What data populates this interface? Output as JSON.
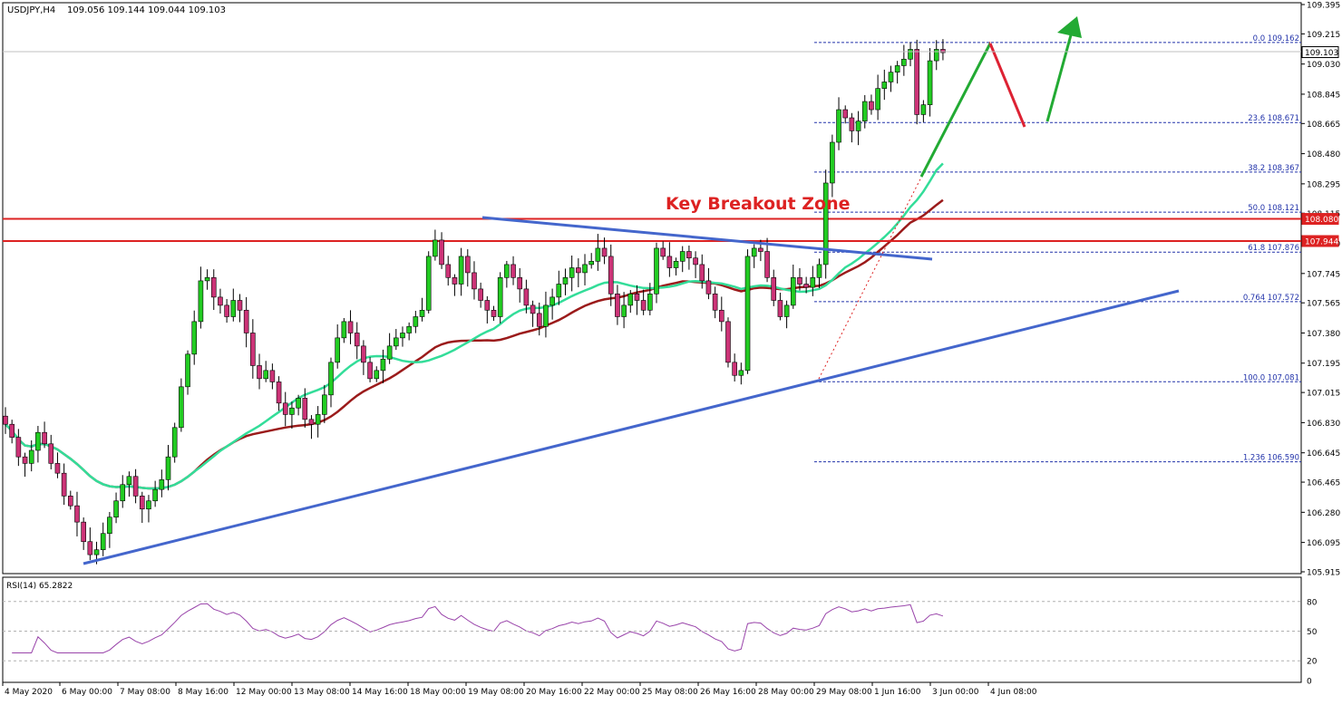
{
  "header": {
    "symbol": "USDJPY,H4",
    "ohlc": "109.056 109.144 109.044 109.103"
  },
  "annotation": "Key Breakout Zone",
  "rsi_label": "RSI(14) 65.2822",
  "colors": {
    "bull_candle": "#22cc22",
    "bear_candle": "#cc3377",
    "sma_slow": "#9b1b1b",
    "sma_fast": "#33dd99",
    "trendline": "#4466cc",
    "zone_line": "#dd2222",
    "fib": "#2233aa",
    "rsi_line": "#9944aa",
    "arrow_up": "#22aa33",
    "arrow_down": "#dd2233"
  },
  "chart_data": {
    "type": "candlestick",
    "y_axis_ticks": [
      "109.395",
      "109.215",
      "109.030",
      "108.845",
      "108.665",
      "108.480",
      "108.295",
      "108.115",
      "107.930",
      "107.745",
      "107.565",
      "107.380",
      "107.195",
      "107.015",
      "106.830",
      "106.645",
      "106.465",
      "106.280",
      "106.095",
      "105.915"
    ],
    "ylim": [
      105.915,
      109.395
    ],
    "x_axis_ticks": [
      "4 May 2020",
      "6 May 00:00",
      "7 May 08:00",
      "8 May 16:00",
      "12 May 00:00",
      "13 May 08:00",
      "14 May 16:00",
      "18 May 00:00",
      "19 May 08:00",
      "20 May 16:00",
      "22 May 00:00",
      "25 May 08:00",
      "26 May 16:00",
      "28 May 00:00",
      "29 May 08:00",
      "1 Jun 16:00",
      "3 Jun 00:00",
      "4 Jun 08:00"
    ],
    "price_markers": [
      {
        "label": "109.103",
        "value": 109.103,
        "style": "current"
      },
      {
        "label": "108.080",
        "value": 108.08,
        "style": "zone"
      },
      {
        "label": "107.944",
        "value": 107.944,
        "style": "zone"
      }
    ],
    "fib_levels": [
      {
        "label": "0.0 109.162",
        "value": 109.162
      },
      {
        "label": "23.6 108.671",
        "value": 108.671
      },
      {
        "label": "38.2 108.367",
        "value": 108.367
      },
      {
        "label": "50.0 108.121",
        "value": 108.121
      },
      {
        "label": "61.8 107.876",
        "value": 107.876
      },
      {
        "label": "0.764 107.572",
        "value": 107.572
      },
      {
        "label": "100.0 107.081",
        "value": 107.081
      },
      {
        "label": "1.236 106.590",
        "value": 106.59
      }
    ],
    "closes": [
      106.82,
      106.74,
      106.62,
      106.58,
      106.66,
      106.77,
      106.7,
      106.58,
      106.52,
      106.38,
      106.32,
      106.22,
      106.1,
      106.02,
      106.05,
      106.15,
      106.25,
      106.35,
      106.45,
      106.5,
      106.38,
      106.3,
      106.35,
      106.42,
      106.48,
      106.62,
      106.8,
      107.05,
      107.25,
      107.45,
      107.7,
      107.72,
      107.6,
      107.55,
      107.48,
      107.58,
      107.52,
      107.38,
      107.18,
      107.1,
      107.15,
      107.08,
      106.95,
      106.88,
      106.92,
      106.98,
      106.85,
      106.82,
      106.88,
      107.0,
      107.2,
      107.35,
      107.45,
      107.38,
      107.3,
      107.2,
      107.1,
      107.15,
      107.22,
      107.3,
      107.35,
      107.38,
      107.42,
      107.48,
      107.52,
      107.85,
      107.95,
      107.8,
      107.72,
      107.68,
      107.85,
      107.75,
      107.65,
      107.58,
      107.52,
      107.48,
      107.72,
      107.8,
      107.72,
      107.65,
      107.55,
      107.5,
      107.42,
      107.55,
      107.6,
      107.68,
      107.72,
      107.78,
      107.75,
      107.8,
      107.82,
      107.9,
      107.85,
      107.62,
      107.48,
      107.55,
      107.62,
      107.58,
      107.52,
      107.62,
      107.9,
      107.85,
      107.78,
      107.82,
      107.88,
      107.84,
      107.8,
      107.7,
      107.62,
      107.52,
      107.45,
      107.2,
      107.12,
      107.15,
      107.85,
      107.9,
      107.88,
      107.72,
      107.58,
      107.48,
      107.55,
      107.72,
      107.68,
      107.66,
      107.72,
      107.8,
      108.3,
      108.55,
      108.75,
      108.7,
      108.62,
      108.68,
      108.8,
      108.75,
      108.88,
      108.92,
      108.98,
      109.02,
      109.06,
      109.12,
      108.72,
      108.78,
      109.05,
      109.12,
      109.1
    ],
    "rsi": {
      "ylim": [
        0,
        100
      ],
      "levels": [
        80,
        50,
        20
      ],
      "tick_labels": [
        "80",
        "50",
        "20",
        "0"
      ],
      "last": 65.2822
    }
  }
}
